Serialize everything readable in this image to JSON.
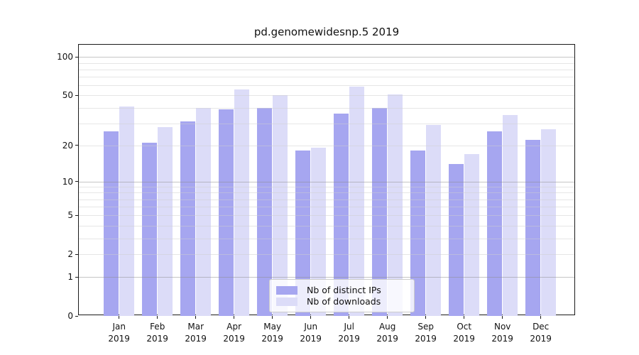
{
  "figure": {
    "title": "pd.genomewidesnp.5 2019"
  },
  "chart_data": {
    "type": "bar",
    "title": "pd.genomewidesnp.5 2019",
    "categories": [
      "Jan",
      "Feb",
      "Mar",
      "Apr",
      "May",
      "Jun",
      "Jul",
      "Aug",
      "Sep",
      "Oct",
      "Nov",
      "Dec"
    ],
    "category_year": "2019",
    "series": [
      {
        "name": "Nb of distinct IPs",
        "color": "#a6a6f0",
        "values": [
          26,
          21,
          31,
          39,
          40,
          18,
          36,
          40,
          18,
          14,
          26,
          22
        ]
      },
      {
        "name": "Nb of downloads",
        "color": "#dcdcf8",
        "values": [
          41,
          28,
          40,
          56,
          50,
          19,
          59,
          51,
          29,
          17,
          35,
          27
        ]
      }
    ],
    "xlabel": "",
    "ylabel": "",
    "yscale": "log10(value+1)",
    "ylim": [
      0,
      125
    ],
    "yticks": [
      0,
      1,
      2,
      5,
      10,
      20,
      50,
      100
    ],
    "major_gridlines": [
      1,
      10,
      100
    ],
    "minor_gridlines": [
      2,
      3,
      4,
      5,
      6,
      7,
      8,
      9,
      20,
      30,
      40,
      50,
      60,
      70,
      80,
      90
    ],
    "grid": true,
    "legend_position": "bottom-center"
  },
  "colors": {
    "spine": "#1a1a1a",
    "major_grid": "#c3c3c3",
    "minor_grid": "#e9e9e9",
    "legend_border": "#cccccc"
  }
}
